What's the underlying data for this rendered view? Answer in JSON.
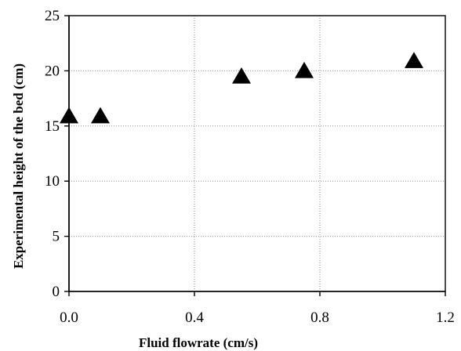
{
  "chart_data": {
    "type": "scatter",
    "title": "",
    "xlabel": "Fluid flowrate (cm/s)",
    "ylabel": "Experimental height of the bed (cm)",
    "xlim": [
      0.0,
      1.2
    ],
    "ylim": [
      0,
      25
    ],
    "x_ticks": [
      "0.0",
      "0.4",
      "0.8",
      "1.2"
    ],
    "y_ticks": [
      "0",
      "5",
      "10",
      "15",
      "20",
      "25"
    ],
    "grid": true,
    "marker": "triangle",
    "series": [
      {
        "points": [
          {
            "x": 0.0,
            "y": 15.9
          },
          {
            "x": 0.1,
            "y": 15.9
          },
          {
            "x": 0.55,
            "y": 19.5
          },
          {
            "x": 0.75,
            "y": 20.0
          },
          {
            "x": 1.1,
            "y": 20.9
          }
        ]
      }
    ]
  }
}
